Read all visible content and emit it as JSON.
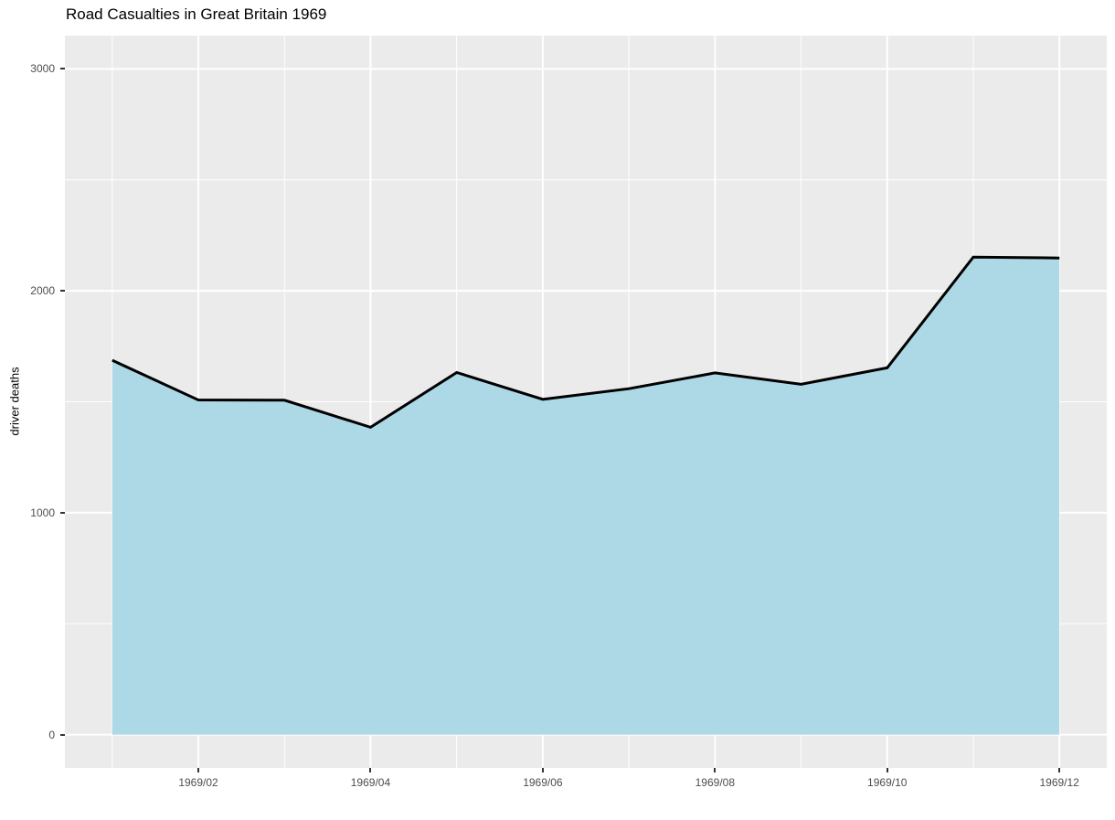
{
  "chart_data": {
    "type": "area",
    "title": "Road Casualties in Great Britain 1969",
    "xlabel": "",
    "ylabel": "driver deaths",
    "series_name": "driver deaths",
    "x": [
      "1969/01",
      "1969/02",
      "1969/03",
      "1969/04",
      "1969/05",
      "1969/06",
      "1969/07",
      "1969/08",
      "1969/09",
      "1969/10",
      "1969/11",
      "1969/12"
    ],
    "values": [
      1687,
      1508,
      1507,
      1385,
      1632,
      1511,
      1559,
      1630,
      1579,
      1653,
      2152,
      2148
    ],
    "ylim": [
      0,
      3000
    ],
    "y_major_ticks": [
      0,
      1000,
      2000,
      3000
    ],
    "y_minor_ticks": [
      500,
      1500,
      2500
    ],
    "x_tick_labels": [
      "1969/02",
      "1969/04",
      "1969/06",
      "1969/08",
      "1969/10",
      "1969/12"
    ],
    "x_tick_indices": [
      1,
      3,
      5,
      7,
      9,
      11
    ],
    "grid": true,
    "legend_position": "none",
    "colors": {
      "area_fill": "#ADD8E6",
      "line": "#000000",
      "panel_background": "#EBEBEB",
      "grid_line": "#FFFFFF",
      "axis_text": "#4D4D4D",
      "tick_mark": "#333333",
      "title_text": "#000000",
      "page_background": "#FFFFFF"
    }
  }
}
